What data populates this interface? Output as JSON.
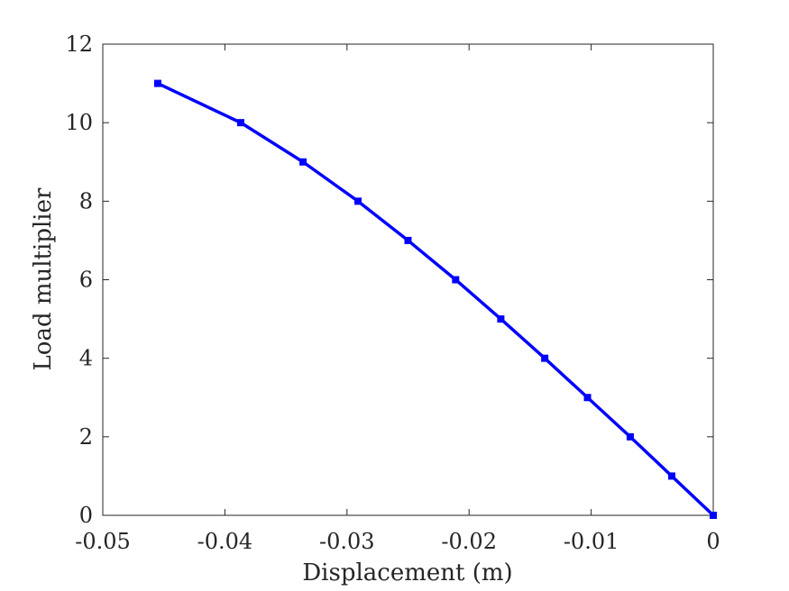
{
  "chart_data": {
    "type": "line",
    "xlabel": "Displacement (m)",
    "ylabel": "Load multiplier",
    "xlim": [
      -0.05,
      0
    ],
    "ylim": [
      0,
      12
    ],
    "xticks": [
      -0.05,
      -0.04,
      -0.03,
      -0.02,
      -0.01,
      0
    ],
    "xtick_labels": [
      "-0.05",
      "-0.04",
      "-0.03",
      "-0.02",
      "-0.01",
      "0"
    ],
    "yticks": [
      0,
      2,
      4,
      6,
      8,
      10,
      12
    ],
    "ytick_labels": [
      "0",
      "2",
      "4",
      "6",
      "8",
      "10",
      "12"
    ],
    "grid": false,
    "series": [
      {
        "color": "#0000ff",
        "marker": "square",
        "x": [
          0,
          -0.0034,
          -0.0068,
          -0.0103,
          -0.0138,
          -0.0174,
          -0.0211,
          -0.025,
          -0.0291,
          -0.0336,
          -0.0387,
          -0.0455
        ],
        "y": [
          0,
          1,
          2,
          3,
          4,
          5,
          6,
          7,
          8,
          9,
          10,
          11
        ]
      }
    ]
  }
}
